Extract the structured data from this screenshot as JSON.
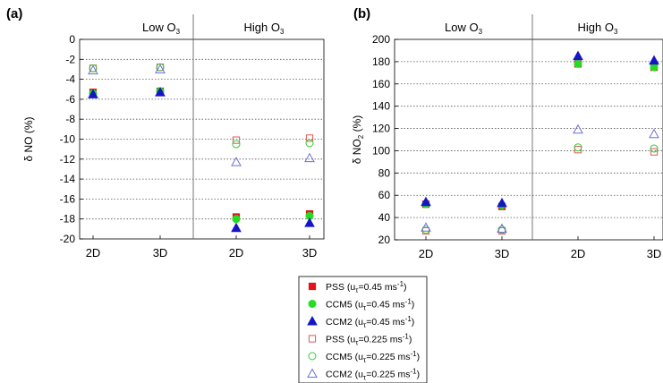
{
  "figure": {
    "legend": [
      {
        "key": "pss_045",
        "name": "PSS",
        "param": "0.45",
        "marker": "square",
        "filled": true,
        "color": "#e3121b"
      },
      {
        "key": "ccm5_045",
        "name": "CCM5",
        "param": "0.45",
        "marker": "circle",
        "filled": true,
        "color": "#22dd22"
      },
      {
        "key": "ccm2_045",
        "name": "CCM2",
        "param": "0.45",
        "marker": "triangle",
        "filled": true,
        "color": "#1515c8"
      },
      {
        "key": "pss_0225",
        "name": "PSS",
        "param": "0.225",
        "marker": "square",
        "filled": false,
        "color": "#e35555"
      },
      {
        "key": "ccm5_0225",
        "name": "CCM5",
        "param": "0.225",
        "marker": "circle",
        "filled": false,
        "color": "#33cc33"
      },
      {
        "key": "ccm2_0225",
        "name": "CCM2",
        "param": "0.225",
        "marker": "triangle",
        "filled": false,
        "color": "#6f6fd8"
      }
    ],
    "legend_unit": "ms",
    "legend_sub": "τ",
    "legend_exp": "-1"
  },
  "chart_data": [
    {
      "type": "scatter",
      "panel_label": "(a)",
      "ylabel": "δ NO (%)",
      "ylim": [
        -20,
        0
      ],
      "yticks": [
        0,
        -2,
        -4,
        -6,
        -8,
        -10,
        -12,
        -14,
        -16,
        -18,
        -20
      ],
      "grid": "horizontal dotted",
      "groups": [
        {
          "label": "Low O",
          "sub": "3"
        },
        {
          "label": "High O",
          "sub": "3"
        }
      ],
      "categories": [
        "2D",
        "3D",
        "2D",
        "3D"
      ],
      "series": [
        {
          "key": "pss_045",
          "values": [
            -5.3,
            -5.2,
            -17.8,
            -17.5
          ]
        },
        {
          "key": "ccm5_045",
          "values": [
            -5.4,
            -5.2,
            -18.0,
            -17.7
          ]
        },
        {
          "key": "ccm2_045",
          "values": [
            -5.5,
            -5.3,
            -18.9,
            -18.4
          ]
        },
        {
          "key": "pss_0225",
          "values": [
            -2.9,
            -2.8,
            -10.1,
            -9.9
          ]
        },
        {
          "key": "ccm5_0225",
          "values": [
            -2.9,
            -2.8,
            -10.5,
            -10.4
          ]
        },
        {
          "key": "ccm2_0225",
          "values": [
            -3.1,
            -3.0,
            -12.3,
            -11.9
          ]
        }
      ]
    },
    {
      "type": "scatter",
      "panel_label": "(b)",
      "ylabel": "δ NO",
      "ylabel_sub": "2",
      "ylabel_suffix": " (%)",
      "ylim": [
        20,
        200
      ],
      "yticks": [
        200,
        180,
        160,
        140,
        120,
        100,
        80,
        60,
        40,
        20
      ],
      "grid": "horizontal dotted",
      "groups": [
        {
          "label": "Low O",
          "sub": "3"
        },
        {
          "label": "High O",
          "sub": "3"
        }
      ],
      "categories": [
        "2D",
        "3D",
        "2D",
        "3D"
      ],
      "series": [
        {
          "key": "pss_045",
          "values": [
            52,
            50,
            178,
            175
          ]
        },
        {
          "key": "ccm5_045",
          "values": [
            52,
            51,
            178,
            175
          ]
        },
        {
          "key": "ccm2_045",
          "values": [
            54,
            53,
            185,
            181
          ]
        },
        {
          "key": "pss_0225",
          "values": [
            28,
            28,
            101,
            99
          ]
        },
        {
          "key": "ccm5_0225",
          "values": [
            29,
            29,
            103,
            102
          ]
        },
        {
          "key": "ccm2_0225",
          "values": [
            31,
            30,
            119,
            115
          ]
        }
      ]
    }
  ]
}
